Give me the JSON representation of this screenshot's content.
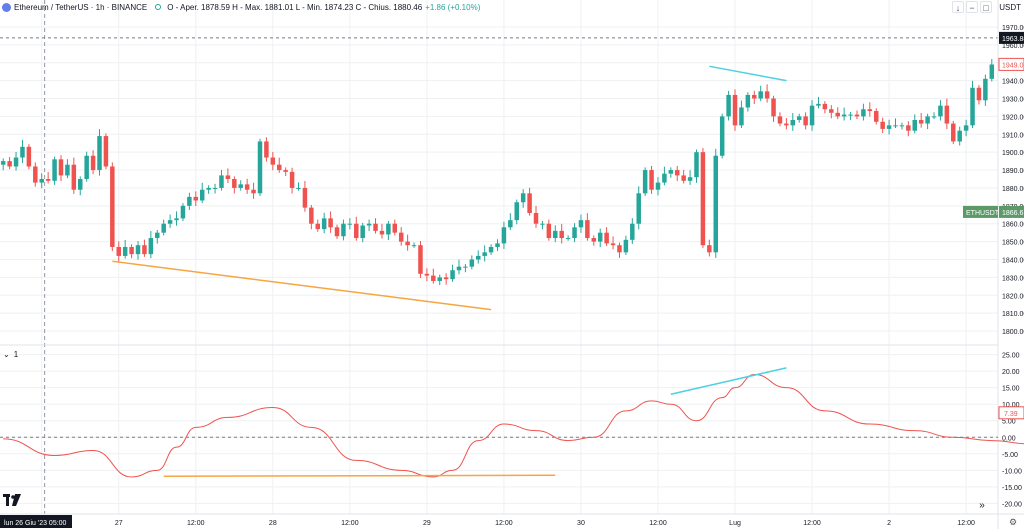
{
  "header": {
    "symbol": "Ethereum / TetherUS · 1h · BINANCE",
    "ohlc": "O - Aper. 1878.59  H - Max. 1881.01  L - Min. 1874.23  C - Chius. 1880.46",
    "change": "+1.86 (+0.10%)",
    "currency": "USDT",
    "buttons": [
      "↓",
      "−",
      "□"
    ]
  },
  "indicator": {
    "label": "1"
  },
  "colors": {
    "up": "#26a69a",
    "down": "#ef5350",
    "wick": "#787b86",
    "grid": "#eef0f3",
    "oscillator": "#ef5350",
    "trend_orange": "#f7a541",
    "trend_cyan": "#4dd0e1",
    "price_tag_dark": "#131722",
    "price_tag_red": "#ef5350",
    "price_tag_green": "#5b9a68"
  },
  "chart_data": [
    {
      "type": "candlestick",
      "yaxis_ticks": [
        "1970.00",
        "1960.00",
        "1950.00",
        "1940.00",
        "1930.00",
        "1920.00",
        "1910.00",
        "1900.00",
        "1890.00",
        "1880.00",
        "1870.00",
        "1860.00",
        "1850.00",
        "1840.00",
        "1830.00",
        "1820.00",
        "1810.00",
        "1800.00"
      ],
      "ylim": [
        1795,
        1975
      ],
      "xaxis_ticks": [
        "12:00",
        "27",
        "12:00",
        "28",
        "12:00",
        "29",
        "12:00",
        "30",
        "12:00",
        "Lug",
        "12:00",
        "2",
        "12:00",
        "3"
      ],
      "xaxis_cursor_label": "lun 26 Giu '23  05:00",
      "price_tags": [
        {
          "label": "1963.88",
          "value": 1963.88,
          "style": "dark"
        },
        {
          "label": "1949.07",
          "value": 1949.07,
          "style": "red"
        },
        {
          "label": "ETHUSDT",
          "value": 1866.6,
          "style": "green"
        },
        {
          "label": "1866.6",
          "value": 1866.6,
          "style": "green"
        }
      ],
      "dashed_level": 1963.88,
      "closes": [
        1895,
        1892,
        1897,
        1903,
        1892,
        1883,
        1885,
        1884,
        1896,
        1887,
        1893,
        1879,
        1885,
        1898,
        1890,
        1909,
        1892,
        1847,
        1842,
        1847,
        1843,
        1848,
        1843,
        1852,
        1855,
        1860,
        1862,
        1863,
        1870,
        1875,
        1873,
        1879,
        1880,
        1880,
        1887,
        1885,
        1880,
        1882,
        1879,
        1877,
        1906,
        1897,
        1893,
        1890,
        1889,
        1880,
        1880,
        1869,
        1860,
        1857,
        1863,
        1858,
        1853,
        1860,
        1860,
        1852,
        1859,
        1860,
        1856,
        1854,
        1860,
        1855,
        1850,
        1848,
        1848,
        1832,
        1831,
        1828,
        1830,
        1829,
        1834,
        1836,
        1836,
        1840,
        1842,
        1844,
        1847,
        1849,
        1858,
        1862,
        1872,
        1877,
        1866,
        1860,
        1860,
        1852,
        1856,
        1852,
        1852,
        1858,
        1862,
        1852,
        1850,
        1855,
        1849,
        1848,
        1844,
        1851,
        1860,
        1877,
        1890,
        1879,
        1883,
        1888,
        1890,
        1887,
        1884,
        1886,
        1900,
        1848,
        1844,
        1898,
        1920,
        1932,
        1915,
        1925,
        1932,
        1930,
        1934,
        1930,
        1920,
        1916,
        1915,
        1918,
        1920,
        1915,
        1926,
        1927,
        1924,
        1922,
        1920,
        1921,
        1921,
        1920,
        1924,
        1923,
        1917,
        1913,
        1915,
        1915,
        1915,
        1912,
        1918,
        1916,
        1920,
        1920,
        1926,
        1916,
        1906,
        1912,
        1915,
        1936,
        1929,
        1941,
        1949
      ],
      "trendlines": [
        {
          "color": "orange",
          "from": [
            17,
            1839
          ],
          "to": [
            76,
            1812
          ]
        },
        {
          "color": "cyan",
          "from": [
            110,
            1948
          ],
          "to": [
            122,
            1940
          ]
        }
      ]
    },
    {
      "type": "line",
      "name": "",
      "yaxis_ticks": [
        "25.00",
        "20.00",
        "15.00",
        "10.00",
        "5.00",
        "0.00",
        "-5.00",
        "-10.00",
        "-15.00",
        "-20.00"
      ],
      "ylim": [
        -22,
        27
      ],
      "zero_line": 0,
      "last_value_label": "7.39",
      "x": [
        0,
        8,
        14,
        20,
        24,
        27,
        30,
        35,
        42,
        48,
        55,
        62,
        67,
        70,
        74,
        78,
        83,
        88,
        92,
        97,
        101,
        104,
        108,
        112,
        114,
        117,
        122,
        128,
        135,
        142,
        148,
        154,
        160,
        166,
        172,
        178
      ],
      "y": [
        -0.5,
        -5.5,
        -4,
        -12,
        -10,
        -3,
        3,
        6,
        9,
        3,
        -7,
        -10,
        -12,
        -10,
        -1,
        4,
        2,
        -1,
        0,
        8,
        11,
        10,
        5,
        12,
        15,
        19,
        15,
        8,
        4,
        2,
        0,
        -1,
        -2,
        0,
        -1,
        7.4
      ],
      "trendlines": [
        {
          "color": "orange",
          "from": [
            25,
            -11.8
          ],
          "to": [
            86,
            -11.5
          ]
        },
        {
          "color": "cyan",
          "from": [
            104,
            13
          ],
          "to": [
            122,
            21
          ]
        }
      ]
    }
  ]
}
